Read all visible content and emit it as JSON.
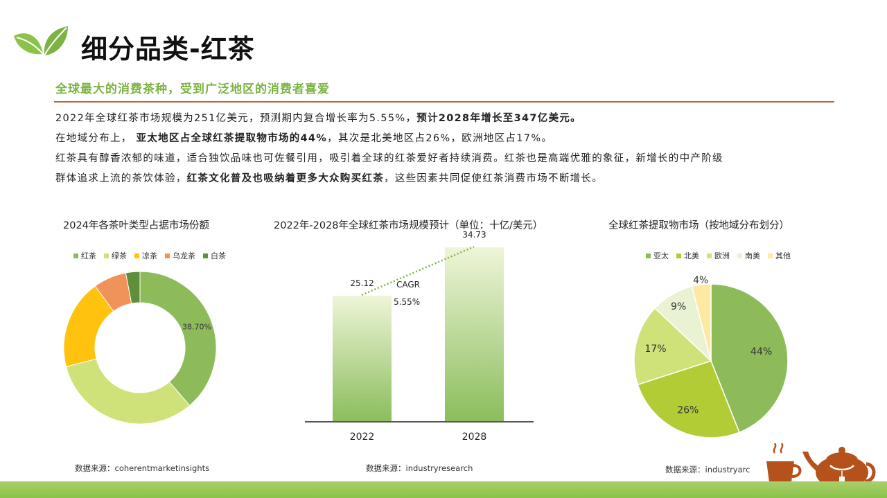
{
  "header": {
    "title": "细分品类-红茶",
    "subtitle": "全球最大的消费茶种，受到广泛地区的消费者喜爱"
  },
  "body": {
    "p1_a": "2022年全球红茶市场规模为251亿美元，预测期内复合增长率为5.55%，",
    "p1_b": "预计2028年增长至347亿美元。",
    "p2_a": "在地域分布上，",
    "p2_b": "亚太地区占全球红茶提取物市场的44%",
    "p2_c": "，其次是北美地区占26%，欧洲地区占17%。",
    "p3": "红茶具有醇香浓郁的味道，适合独饮品味也可佐餐引用，吸引着全球的红茶爱好者持续消费。红茶也是高端优雅的象征，新增长的中产阶级",
    "p4_a": "群体追求上流的茶饮体验，",
    "p4_b": "红茶文化普及也吸纳着更多大众购买红茶",
    "p4_c": "，这些因素共同促使红茶消费市场不断增长。"
  },
  "colors": {
    "accent_green": "#7cb342",
    "rule_brown": "#b8672e",
    "teapot_brown": "#b5521b"
  },
  "chart_data": [
    {
      "type": "pie",
      "variant": "donut",
      "title": "2024年各茶叶类型占据市场份额",
      "categories": [
        "红茶",
        "绿茶",
        "凉茶",
        "乌龙茶",
        "白茶"
      ],
      "values": [
        38.7,
        32.3,
        19.0,
        7.0,
        3.0
      ],
      "colors": [
        "#8dbb5a",
        "#cfe27a",
        "#ffc20e",
        "#f0935a",
        "#5f8f3a"
      ],
      "data_labels": [
        "38.70%",
        "",
        "",
        "",
        ""
      ],
      "legend": "top",
      "source": "数据来源：coherentmarketinsights"
    },
    {
      "type": "bar",
      "title": "2022年-2028年全球红茶市场规模预计（单位：十亿/美元）",
      "categories": [
        "2022",
        "2028"
      ],
      "values": [
        25.12,
        34.73
      ],
      "value_labels": [
        "25.12",
        "34.73"
      ],
      "annotation": {
        "label": "CAGR",
        "value": "5.55%"
      },
      "ylim": [
        0,
        40
      ],
      "source": "数据来源：industryresearch"
    },
    {
      "type": "pie",
      "title": "全球红茶提取物市场（按地域分布划分）",
      "categories": [
        "亚太",
        "北美",
        "欧洲",
        "南美",
        "其他"
      ],
      "values": [
        44,
        26,
        17,
        9,
        4
      ],
      "labels": [
        "44%",
        "26%",
        "17%",
        "9%",
        "4%"
      ],
      "colors": [
        "#8dbb5a",
        "#b2cc35",
        "#cfe27a",
        "#e9f2d2",
        "#fde9a4"
      ],
      "legend": "top",
      "source": "数据来源：industryarc"
    }
  ]
}
